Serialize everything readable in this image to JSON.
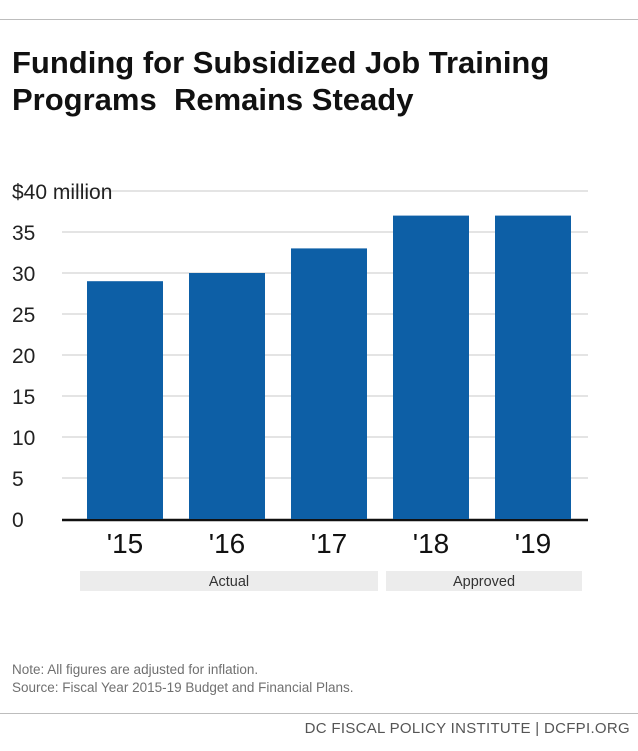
{
  "chart_data": {
    "type": "bar",
    "title": "Funding for Subsidized Job Training Programs  Remains Steady",
    "categories": [
      "'15",
      "'16",
      "'17",
      "'18",
      "'19"
    ],
    "values": [
      29,
      30,
      33,
      37,
      37
    ],
    "ylim": [
      0,
      40
    ],
    "yticks": [
      "0",
      "5",
      "10",
      "15",
      "20",
      "25",
      "30",
      "35",
      "$40 million"
    ],
    "ytick_values": [
      0,
      5,
      10,
      15,
      20,
      25,
      30,
      35,
      40
    ],
    "grid": true,
    "bar_color": "#0d5fa6",
    "groups": [
      {
        "label": "Actual",
        "categories": [
          "'15",
          "'16",
          "'17"
        ]
      },
      {
        "label": "Approved",
        "categories": [
          "'18",
          "'19"
        ]
      }
    ]
  },
  "notes": {
    "note": "Note: All figures are adjusted for inflation.",
    "source": "Source: Fiscal Year 2015-19 Budget and Financial Plans."
  },
  "footer": "DC FISCAL POLICY INSTITUTE | DCFPI.ORG"
}
